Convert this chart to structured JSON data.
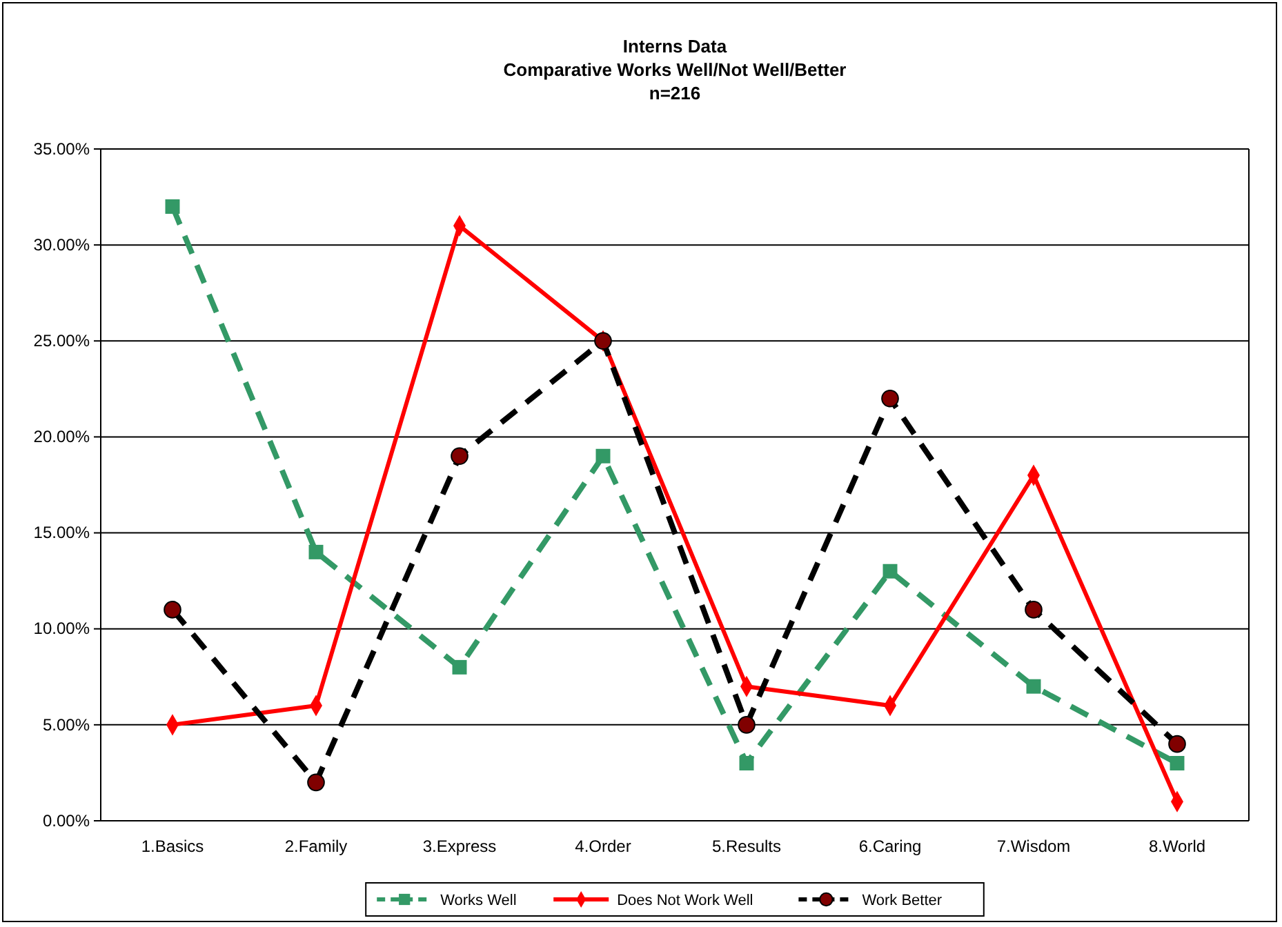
{
  "chart_data": {
    "type": "line",
    "title": "Interns Data\nComparative Works Well/Not Well/Better\nn=216",
    "categories": [
      "1.Basics",
      "2.Family",
      "3.Express",
      "4.Order",
      "5.Results",
      "6.Caring",
      "7.Wisdom",
      "8.World"
    ],
    "series": [
      {
        "name": "Works Well",
        "color": "#339966",
        "marker": "square",
        "line_style": "dashed",
        "values": [
          32,
          14,
          8,
          19,
          3,
          13,
          7,
          3
        ]
      },
      {
        "name": "Does Not Work Well",
        "color": "#ff0000",
        "marker": "diamond",
        "line_style": "solid",
        "values": [
          5,
          6,
          31,
          25,
          7,
          6,
          18,
          1
        ]
      },
      {
        "name": "Work Better",
        "color": "#000000",
        "marker": "circle",
        "line_style": "dashed",
        "values": [
          11,
          2,
          19,
          25,
          5,
          22,
          11,
          4
        ]
      }
    ],
    "ylim": [
      0,
      35
    ],
    "yticks": [
      {
        "value": 0,
        "label": "0.00%"
      },
      {
        "value": 5,
        "label": "5.00%"
      },
      {
        "value": 10,
        "label": "10.00%"
      },
      {
        "value": 15,
        "label": "15.00%"
      },
      {
        "value": 20,
        "label": "20.00%"
      },
      {
        "value": 25,
        "label": "25.00%"
      },
      {
        "value": 30,
        "label": "30.00%"
      },
      {
        "value": 35,
        "label": "35.00%"
      }
    ],
    "grid": "y",
    "legend": "bottom"
  }
}
